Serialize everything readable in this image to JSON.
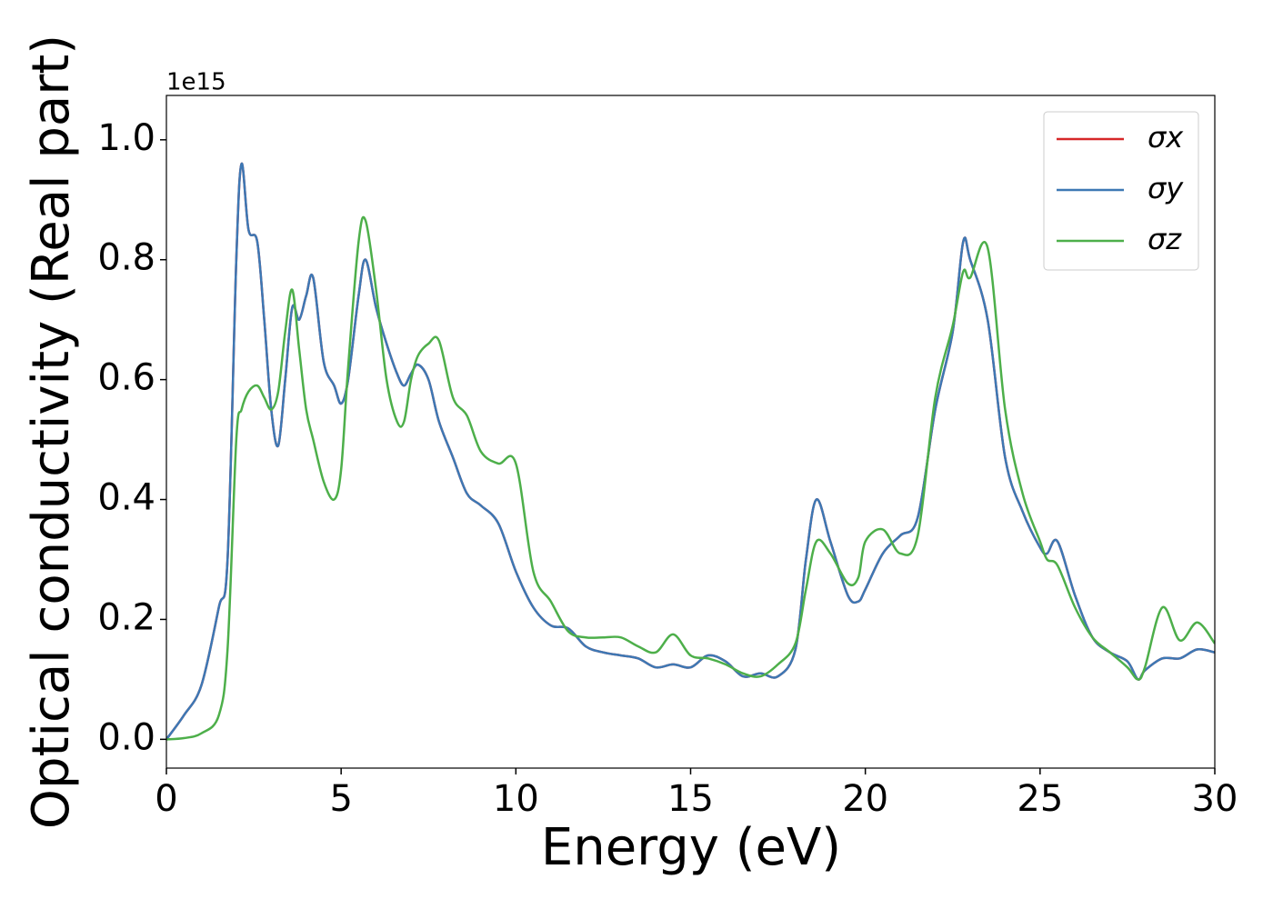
{
  "chart_data": {
    "type": "line",
    "xlabel": "Energy (eV)",
    "ylabel": "Optical conductivity (Real part)",
    "offset_text": "1e15",
    "xlim": [
      0,
      30
    ],
    "ylim": [
      -0.048,
      1.074
    ],
    "xticks": [
      0,
      5,
      10,
      15,
      20,
      25,
      30
    ],
    "yticks": [
      {
        "value": 0,
        "label": "0.0"
      },
      {
        "value": 0.2,
        "label": "0.2"
      },
      {
        "value": 0.4,
        "label": "0.4"
      },
      {
        "value": 0.6,
        "label": "0.6"
      },
      {
        "value": 0.8,
        "label": "0.8"
      },
      {
        "value": 1.0,
        "label": "1.0"
      }
    ],
    "legend": "upper right",
    "x": [
      0,
      0.5,
      1,
      1.5,
      1.75,
      2,
      2.15,
      2.35,
      2.6,
      2.8,
      3,
      3.2,
      3.4,
      3.6,
      3.8,
      4,
      4.2,
      4.5,
      4.8,
      5,
      5.2,
      5.5,
      5.7,
      6,
      6.3,
      6.6,
      6.8,
      7,
      7.2,
      7.5,
      7.8,
      8.2,
      8.6,
      9,
      9.5,
      10,
      10.5,
      11,
      11.5,
      12,
      12.5,
      13,
      13.5,
      14,
      14.5,
      15,
      15.5,
      16,
      16.5,
      17,
      17.5,
      18,
      18.3,
      18.6,
      19,
      19.5,
      19.8,
      20,
      20.5,
      21,
      21.5,
      22,
      22.5,
      22.8,
      23,
      23.5,
      24,
      24.5,
      25,
      25.2,
      25.5,
      26,
      26.5,
      27,
      27.5,
      27.8,
      28,
      28.5,
      29,
      29.5,
      30
    ],
    "series": [
      {
        "name": "σx",
        "color": "#d62728",
        "values": [
          0,
          0.04,
          0.09,
          0.22,
          0.3,
          0.8,
          0.96,
          0.85,
          0.83,
          0.7,
          0.55,
          0.49,
          0.6,
          0.72,
          0.7,
          0.74,
          0.77,
          0.63,
          0.59,
          0.56,
          0.6,
          0.74,
          0.8,
          0.72,
          0.66,
          0.61,
          0.59,
          0.61,
          0.625,
          0.6,
          0.53,
          0.47,
          0.41,
          0.39,
          0.36,
          0.28,
          0.22,
          0.19,
          0.185,
          0.155,
          0.145,
          0.14,
          0.135,
          0.12,
          0.125,
          0.12,
          0.14,
          0.13,
          0.105,
          0.11,
          0.105,
          0.15,
          0.3,
          0.4,
          0.33,
          0.24,
          0.23,
          0.25,
          0.31,
          0.34,
          0.37,
          0.55,
          0.68,
          0.83,
          0.8,
          0.7,
          0.47,
          0.38,
          0.32,
          0.31,
          0.33,
          0.24,
          0.17,
          0.145,
          0.13,
          0.1,
          0.115,
          0.135,
          0.135,
          0.15,
          0.145
        ]
      },
      {
        "name": "σy",
        "color": "#3d78b4",
        "values": [
          0,
          0.04,
          0.09,
          0.22,
          0.3,
          0.8,
          0.96,
          0.85,
          0.83,
          0.7,
          0.55,
          0.49,
          0.6,
          0.72,
          0.7,
          0.74,
          0.77,
          0.63,
          0.59,
          0.56,
          0.6,
          0.74,
          0.8,
          0.72,
          0.66,
          0.61,
          0.59,
          0.61,
          0.625,
          0.6,
          0.53,
          0.47,
          0.41,
          0.39,
          0.36,
          0.28,
          0.22,
          0.19,
          0.185,
          0.155,
          0.145,
          0.14,
          0.135,
          0.12,
          0.125,
          0.12,
          0.14,
          0.13,
          0.105,
          0.11,
          0.105,
          0.15,
          0.3,
          0.4,
          0.33,
          0.24,
          0.23,
          0.25,
          0.31,
          0.34,
          0.37,
          0.55,
          0.68,
          0.83,
          0.8,
          0.7,
          0.47,
          0.38,
          0.32,
          0.31,
          0.33,
          0.24,
          0.17,
          0.145,
          0.13,
          0.1,
          0.115,
          0.135,
          0.135,
          0.15,
          0.145
        ]
      },
      {
        "name": "σz",
        "color": "#4daf4a",
        "values": [
          0,
          0.002,
          0.01,
          0.04,
          0.15,
          0.5,
          0.55,
          0.58,
          0.59,
          0.57,
          0.55,
          0.58,
          0.68,
          0.75,
          0.65,
          0.55,
          0.5,
          0.43,
          0.4,
          0.45,
          0.62,
          0.83,
          0.865,
          0.75,
          0.6,
          0.53,
          0.53,
          0.6,
          0.64,
          0.66,
          0.665,
          0.57,
          0.54,
          0.48,
          0.46,
          0.46,
          0.28,
          0.23,
          0.18,
          0.17,
          0.17,
          0.17,
          0.155,
          0.145,
          0.175,
          0.14,
          0.135,
          0.125,
          0.11,
          0.105,
          0.125,
          0.16,
          0.25,
          0.33,
          0.31,
          0.26,
          0.27,
          0.33,
          0.35,
          0.31,
          0.34,
          0.57,
          0.69,
          0.78,
          0.77,
          0.82,
          0.55,
          0.41,
          0.33,
          0.3,
          0.29,
          0.22,
          0.17,
          0.145,
          0.12,
          0.1,
          0.12,
          0.22,
          0.165,
          0.195,
          0.16
        ]
      }
    ]
  }
}
